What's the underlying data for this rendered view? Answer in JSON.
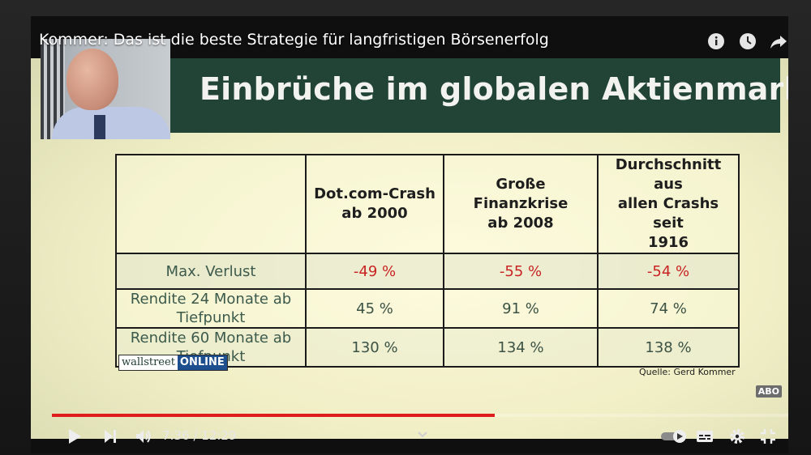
{
  "video": {
    "title": "Kommer: Das ist die beste Strategie für langfristigen Börsenerfolg",
    "progress_fraction": 0.6,
    "time_current": "7:36",
    "time_separator": " / ",
    "time_total": "12:29"
  },
  "slide": {
    "title": "Einbrüche im globalen Aktienmarkt",
    "table": {
      "columns": [
        "",
        "Dot.com-Crash\nab 2000",
        "Große Finanzkrise\nab 2008",
        "Durchschnitt aus\nallen Crashs seit\n1916"
      ],
      "rows": [
        {
          "label": "Max. Verlust",
          "values": [
            "-49 %",
            "-55 %",
            "-54 %"
          ]
        },
        {
          "label": "Rendite 24 Monate ab\nTiefpunkt",
          "values": [
            "45 %",
            "91 %",
            "74 %"
          ]
        },
        {
          "label": "Rendite 60 Monate ab\nTiefpunkt",
          "values": [
            "130 %",
            "134 %",
            "138 %"
          ]
        }
      ]
    },
    "brand_part1": "wallstreet",
    "brand_part2": "ONLINE",
    "source": "Quelle: Gerd Kommer",
    "abo_badge": "ABO"
  },
  "colors": {
    "header_green": "#214436",
    "negative_red": "#c92323",
    "progress_red": "#e01d1d",
    "brand_blue": "#1d4f8e"
  },
  "icons": [
    "info-icon",
    "clock-icon",
    "share-icon",
    "play-icon",
    "next-icon",
    "volume-icon",
    "chevron-down-icon",
    "autoplay-toggle",
    "subtitles-icon",
    "settings-icon",
    "exit-fullscreen-icon"
  ]
}
